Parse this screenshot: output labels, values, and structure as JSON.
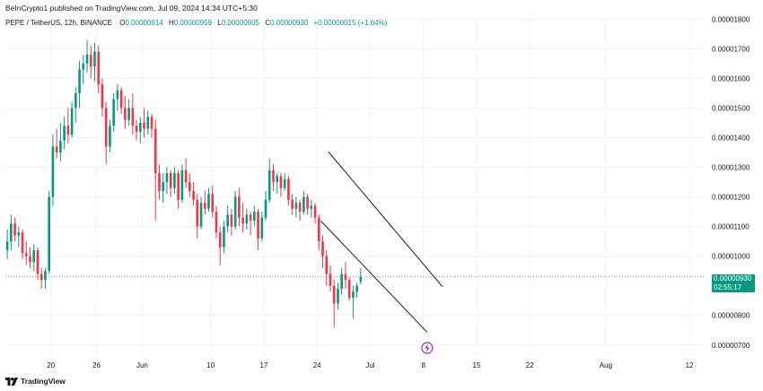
{
  "header": {
    "published": "BeInCrypto1 published on TradingView.com, Jul 09, 2024 14:34 UTC+5:30"
  },
  "legend": {
    "symbol": "PEPE / TetherUS, 12h, BINANCE",
    "open_label": "O",
    "open": "0.00000914",
    "high_label": "H",
    "high": "0.00000959",
    "low_label": "L",
    "low": "0.00000905",
    "close_label": "C",
    "close": "0.00000930",
    "change": "+0.00000015 (+1.64%)"
  },
  "price_label": {
    "price": "0.00000930",
    "countdown": "02:55:17"
  },
  "footer": {
    "brand": "TradingView"
  },
  "colors": {
    "up": "#089981",
    "down": "#f23645",
    "grid": "#f0f3fa",
    "channel": "#131722",
    "flash": "#9c27b0"
  },
  "icons": {
    "flash_marker": "lightning-icon",
    "brand_logo": "tradingview-logo-icon"
  },
  "chart_data": {
    "type": "candlestick",
    "y_axis": {
      "scale": "linear",
      "range": [
        6.6e-06,
        1.81e-05
      ],
      "ticks": [
        "0.00000700",
        "0.00000800",
        "0.00001000",
        "0.00001100",
        "0.00001200",
        "0.00001300",
        "0.00001400",
        "0.00001500",
        "0.00001600",
        "0.00001700",
        "0.00001800"
      ],
      "tick_values": [
        7e-06,
        8e-06,
        1e-05,
        1.1e-05,
        1.2e-05,
        1.3e-05,
        1.4e-05,
        1.5e-05,
        1.6e-05,
        1.7e-05,
        1.8e-05
      ]
    },
    "x_axis": {
      "range": [
        "2024-05-14",
        "2024-08-14"
      ],
      "ticks": [
        {
          "date": "2024-05-20",
          "label": "20"
        },
        {
          "date": "2024-05-26",
          "label": "26"
        },
        {
          "date": "2024-06-01",
          "label": "Jun"
        },
        {
          "date": "2024-06-10",
          "label": "10"
        },
        {
          "date": "2024-06-17",
          "label": "17"
        },
        {
          "date": "2024-06-24",
          "label": "24"
        },
        {
          "date": "2024-07-01",
          "label": "Jul"
        },
        {
          "date": "2024-07-08",
          "label": "8"
        },
        {
          "date": "2024-07-15",
          "label": "15"
        },
        {
          "date": "2024-07-22",
          "label": "22"
        },
        {
          "date": "2024-08-01",
          "label": "Aug"
        },
        {
          "date": "2024-08-12",
          "label": "12"
        }
      ]
    },
    "grid": true,
    "first_candle": "2024-05-14T00:00",
    "interval_hours": 12,
    "candles": [
      [
        1.02e-05,
        1.09e-05,
        9.9e-06,
        1.05e-05
      ],
      [
        1.05e-05,
        1.14e-05,
        1.02e-05,
        1.11e-05
      ],
      [
        1.11e-05,
        1.13e-05,
        1.05e-05,
        1.07e-05
      ],
      [
        1.07e-05,
        1.1e-05,
        1.03e-05,
        1.08e-05
      ],
      [
        1.08e-05,
        1.09e-05,
        9.9e-06,
        1.01e-05
      ],
      [
        1.01e-05,
        1.05e-05,
        9.7e-06,
        1e-05
      ],
      [
        1e-05,
        1.03e-05,
        9.6e-06,
        9.8e-06
      ],
      [
        9.8e-06,
        1.04e-05,
        9.5e-06,
        1.02e-05
      ],
      [
        1.02e-05,
        1.03e-05,
        9.2e-06,
        9.4e-06
      ],
      [
        9.4e-06,
        9.6e-06,
        8.9e-06,
        9.2e-06
      ],
      [
        9.2e-06,
        9.6e-06,
        8.9e-06,
        9.5e-06
      ],
      [
        9.5e-06,
        1.22e-05,
        9.4e-06,
        1.2e-05
      ],
      [
        1.2e-05,
        1.41e-05,
        1.17e-05,
        1.37e-05
      ],
      [
        1.37e-05,
        1.43e-05,
        1.33e-05,
        1.35e-05
      ],
      [
        1.35e-05,
        1.45e-05,
        1.32e-05,
        1.39e-05
      ],
      [
        1.39e-05,
        1.47e-05,
        1.36e-05,
        1.44e-05
      ],
      [
        1.44e-05,
        1.5e-05,
        1.38e-05,
        1.41e-05
      ],
      [
        1.41e-05,
        1.52e-05,
        1.4e-05,
        1.5e-05
      ],
      [
        1.5e-05,
        1.57e-05,
        1.45e-05,
        1.55e-05
      ],
      [
        1.55e-05,
        1.66e-05,
        1.5e-05,
        1.63e-05
      ],
      [
        1.63e-05,
        1.68e-05,
        1.58e-05,
        1.65e-05
      ],
      [
        1.65e-05,
        1.73e-05,
        1.62e-05,
        1.68e-05
      ],
      [
        1.68e-05,
        1.71e-05,
        1.6e-05,
        1.64e-05
      ],
      [
        1.64e-05,
        1.72e-05,
        1.59e-05,
        1.69e-05
      ],
      [
        1.69e-05,
        1.71e-05,
        1.55e-05,
        1.58e-05
      ],
      [
        1.58e-05,
        1.6e-05,
        1.47e-05,
        1.5e-05
      ],
      [
        1.5e-05,
        1.52e-05,
        1.31e-05,
        1.37e-05
      ],
      [
        1.37e-05,
        1.46e-05,
        1.35e-05,
        1.44e-05
      ],
      [
        1.44e-05,
        1.55e-05,
        1.42e-05,
        1.53e-05
      ],
      [
        1.53e-05,
        1.58e-05,
        1.49e-05,
        1.56e-05
      ],
      [
        1.56e-05,
        1.57e-05,
        1.48e-05,
        1.5e-05
      ],
      [
        1.5e-05,
        1.54e-05,
        1.43e-05,
        1.46e-05
      ],
      [
        1.46e-05,
        1.53e-05,
        1.44e-05,
        1.5e-05
      ],
      [
        1.5e-05,
        1.55e-05,
        1.41e-05,
        1.44e-05
      ],
      [
        1.44e-05,
        1.46e-05,
        1.39e-05,
        1.42e-05
      ],
      [
        1.42e-05,
        1.47e-05,
        1.38e-05,
        1.45e-05
      ],
      [
        1.45e-05,
        1.5e-05,
        1.4e-05,
        1.43e-05
      ],
      [
        1.43e-05,
        1.49e-05,
        1.41e-05,
        1.47e-05
      ],
      [
        1.47e-05,
        1.48e-05,
        1.4e-05,
        1.43e-05
      ],
      [
        1.43e-05,
        1.46e-05,
        1.12e-05,
        1.28e-05
      ],
      [
        1.28e-05,
        1.31e-05,
        1.19e-05,
        1.22e-05
      ],
      [
        1.22e-05,
        1.28e-05,
        1.18e-05,
        1.25e-05
      ],
      [
        1.25e-05,
        1.3e-05,
        1.21e-05,
        1.28e-05
      ],
      [
        1.28e-05,
        1.29e-05,
        1.2e-05,
        1.23e-05
      ],
      [
        1.23e-05,
        1.3e-05,
        1.21e-05,
        1.28e-05
      ],
      [
        1.28e-05,
        1.29e-05,
        1.16e-05,
        1.19e-05
      ],
      [
        1.19e-05,
        1.31e-05,
        1.18e-05,
        1.29e-05
      ],
      [
        1.29e-05,
        1.33e-05,
        1.23e-05,
        1.25e-05
      ],
      [
        1.25e-05,
        1.28e-05,
        1.2e-05,
        1.22e-05
      ],
      [
        1.22e-05,
        1.25e-05,
        1.17e-05,
        1.19e-05
      ],
      [
        1.19e-05,
        1.21e-05,
        1.06e-05,
        1.1e-05
      ],
      [
        1.1e-05,
        1.2e-05,
        1.09e-05,
        1.18e-05
      ],
      [
        1.18e-05,
        1.22e-05,
        1.14e-05,
        1.16e-05
      ],
      [
        1.16e-05,
        1.23e-05,
        1.15e-05,
        1.21e-05
      ],
      [
        1.21e-05,
        1.24e-05,
        1.13e-05,
        1.15e-05
      ],
      [
        1.15e-05,
        1.17e-05,
        1.06e-05,
        1.08e-05
      ],
      [
        1.08e-05,
        1.1e-05,
        9.7e-06,
        1.03e-05
      ],
      [
        1.03e-05,
        1.12e-05,
        1.01e-05,
        1.1e-05
      ],
      [
        1.1e-05,
        1.17e-05,
        1.08e-05,
        1.14e-05
      ],
      [
        1.14e-05,
        1.16e-05,
        1.07e-05,
        1.1e-05
      ],
      [
        1.1e-05,
        1.22e-05,
        1.09e-05,
        1.2e-05
      ],
      [
        1.2e-05,
        1.23e-05,
        1.1e-05,
        1.13e-05
      ],
      [
        1.13e-05,
        1.18e-05,
        1.08e-05,
        1.11e-05
      ],
      [
        1.11e-05,
        1.16e-05,
        1.09e-05,
        1.14e-05
      ],
      [
        1.14e-05,
        1.15e-05,
        1.07e-05,
        1.12e-05
      ],
      [
        1.12e-05,
        1.17e-05,
        1.1e-05,
        1.15e-05
      ],
      [
        1.15e-05,
        1.16e-05,
        1.02e-05,
        1.06e-05
      ],
      [
        1.06e-05,
        1.15e-05,
        1.05e-05,
        1.13e-05
      ],
      [
        1.13e-05,
        1.22e-05,
        1.12e-05,
        1.19e-05
      ],
      [
        1.19e-05,
        1.33e-05,
        1.18e-05,
        1.29e-05
      ],
      [
        1.29e-05,
        1.31e-05,
        1.22e-05,
        1.25e-05
      ],
      [
        1.25e-05,
        1.28e-05,
        1.21e-05,
        1.27e-05
      ],
      [
        1.27e-05,
        1.28e-05,
        1.2e-05,
        1.23e-05
      ],
      [
        1.23e-05,
        1.28e-05,
        1.22e-05,
        1.26e-05
      ],
      [
        1.26e-05,
        1.27e-05,
        1.17e-05,
        1.19e-05
      ],
      [
        1.19e-05,
        1.21e-05,
        1.14e-05,
        1.16e-05
      ],
      [
        1.16e-05,
        1.2e-05,
        1.13e-05,
        1.18e-05
      ],
      [
        1.18e-05,
        1.19e-05,
        1.12e-05,
        1.15e-05
      ],
      [
        1.15e-05,
        1.22e-05,
        1.14e-05,
        1.2e-05
      ],
      [
        1.2e-05,
        1.21e-05,
        1.14e-05,
        1.16e-05
      ],
      [
        1.16e-05,
        1.19e-05,
        1.13e-05,
        1.17e-05
      ],
      [
        1.17e-05,
        1.18e-05,
        1.11e-05,
        1.13e-05
      ],
      [
        1.13e-05,
        1.14e-05,
        1.02e-05,
        1.05e-05
      ],
      [
        1.05e-05,
        1.07e-05,
        9.6e-06,
        1e-05
      ],
      [
        1e-05,
        1.02e-05,
        9e-06,
        9.4e-06
      ],
      [
        9.4e-06,
        9.7e-06,
        8.8e-06,
        9e-06
      ],
      [
        9e-06,
        9.2e-06,
        7.6e-06,
        8.4e-06
      ],
      [
        8.4e-06,
        9.1e-06,
        8.2e-06,
        8.9e-06
      ],
      [
        8.9e-06,
        9.6e-06,
        8.7e-06,
        9.4e-06
      ],
      [
        9.4e-06,
        9.8e-06,
        8.9e-06,
        9.2e-06
      ],
      [
        9.2e-06,
        9.3e-06,
        8.5e-06,
        8.6e-06
      ],
      [
        8.6e-06,
        9e-06,
        7.9e-06,
        8.8e-06
      ],
      [
        8.8e-06,
        9.1e-06,
        8.6e-06,
        9e-06
      ],
      [
        9.14e-06,
        9.59e-06,
        9.05e-06,
        9.3e-06
      ]
    ],
    "last_price": 9.3e-06,
    "drawings": [
      {
        "type": "trend_line",
        "from": {
          "date": "2024-06-25T12:00",
          "price": 1.352e-05
        },
        "to": {
          "date": "2024-07-10T12:00",
          "price": 8.97e-06
        }
      },
      {
        "type": "trend_line",
        "from": {
          "date": "2024-06-24T12:00",
          "price": 1.119e-05
        },
        "to": {
          "date": "2024-07-08T12:00",
          "price": 7.43e-06
        }
      }
    ],
    "markers": [
      {
        "type": "event",
        "date": "2024-07-08T12:00",
        "icon": "lightning-icon"
      }
    ]
  }
}
